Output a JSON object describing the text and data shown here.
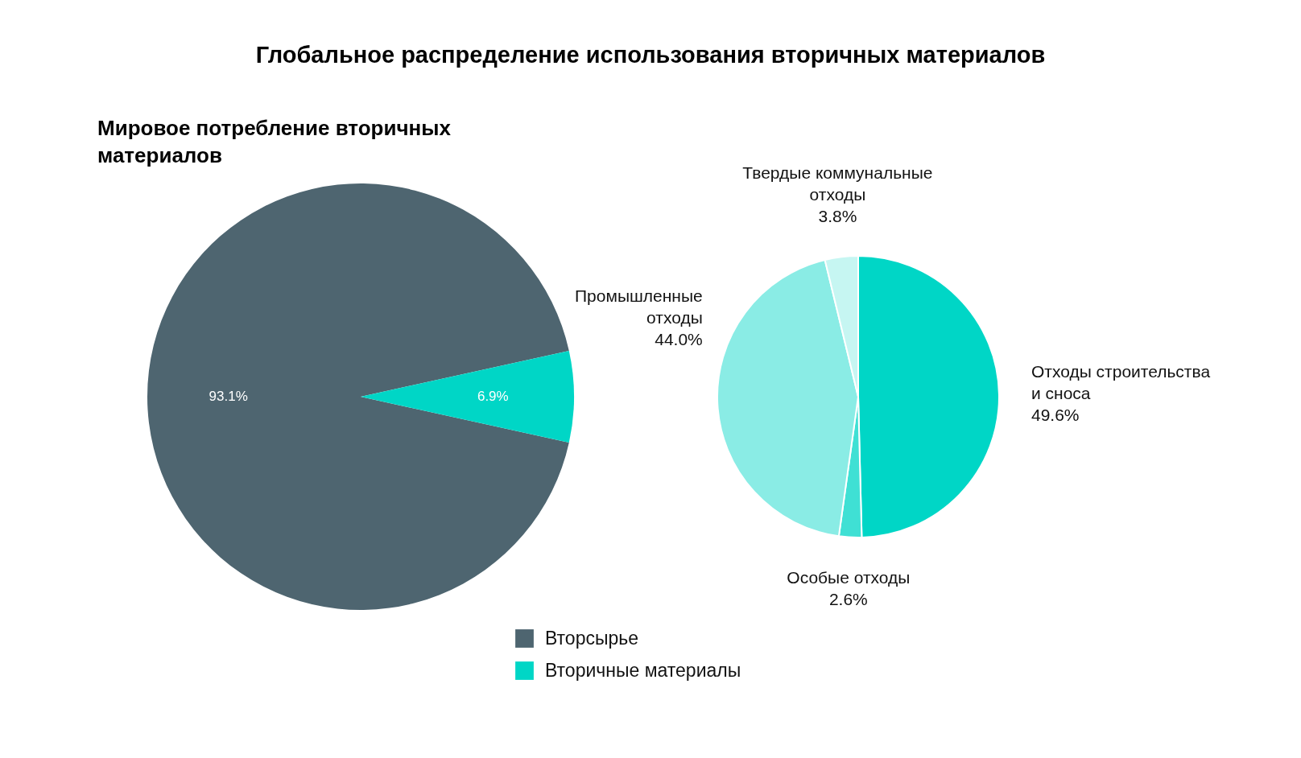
{
  "chart_data": [
    {
      "type": "pie",
      "title": "Глобальное распределение использования вторичных материалов",
      "subtitle": "Мировое потребление вторичных материалов",
      "categories": [
        "Вторсырье",
        "Вторичные материалы"
      ],
      "values": [
        93.1,
        6.9
      ],
      "colors": [
        "#4e6570",
        "#00d6c6"
      ],
      "value_labels": [
        "93.1%",
        "6.9%"
      ],
      "legend": "bottom"
    },
    {
      "type": "pie",
      "categories": [
        "Отходы строительства и сноса",
        "Особые отходы",
        "Промышленные отходы",
        "Твердые коммунальные отходы"
      ],
      "values": [
        49.6,
        2.6,
        44.0,
        3.8
      ],
      "colors": [
        "#00d6c6",
        "#3fe0d4",
        "#8aece5",
        "#c6f6f2"
      ],
      "value_labels": [
        "49.6%",
        "2.6%",
        "44.0%",
        "3.8%"
      ]
    }
  ]
}
